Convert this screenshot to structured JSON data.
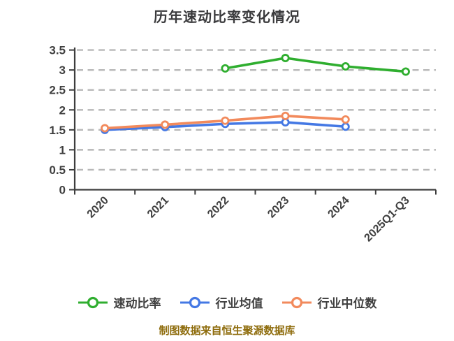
{
  "title": "历年速动比率变化情况",
  "footer": "制图数据来自恒生聚源数据库",
  "colors": {
    "title_text": "#3a3a3c",
    "axis": "#3d3d3d",
    "tick_label": "#3f3f3f",
    "gridline": "#b8b8b8",
    "footer_text": "#8e6c0c",
    "marker_fill": "#ffffff",
    "background": "#ffffff"
  },
  "chart_data": {
    "type": "line",
    "title": "历年速动比率变化情况",
    "categories": [
      "2020",
      "2021",
      "2022",
      "2023",
      "2024",
      "2025Q1-Q3"
    ],
    "series": [
      {
        "name": "速动比率",
        "color": "#2fae2f",
        "values": [
          null,
          null,
          3.04,
          3.3,
          3.09,
          2.96
        ]
      },
      {
        "name": "行业均值",
        "color": "#4478e4",
        "values": [
          1.5,
          1.57,
          1.65,
          1.69,
          1.58,
          null
        ]
      },
      {
        "name": "行业中位数",
        "color": "#f28a5c",
        "values": [
          1.54,
          1.63,
          1.73,
          1.85,
          1.76,
          null
        ]
      }
    ],
    "ylim": [
      0,
      3.5
    ],
    "yticks": [
      0,
      0.5,
      1,
      1.5,
      2,
      2.5,
      3,
      3.5
    ],
    "ytick_labels": [
      "0",
      "0.5",
      "1",
      "1.5",
      "2",
      "2.5",
      "3",
      "3.5"
    ],
    "grid": "horizontal-dashed",
    "legend_position": "bottom",
    "x_label_rotation": 45,
    "marker": "circle-white-fill",
    "source_note": "制图数据来自恒生聚源数据库"
  }
}
